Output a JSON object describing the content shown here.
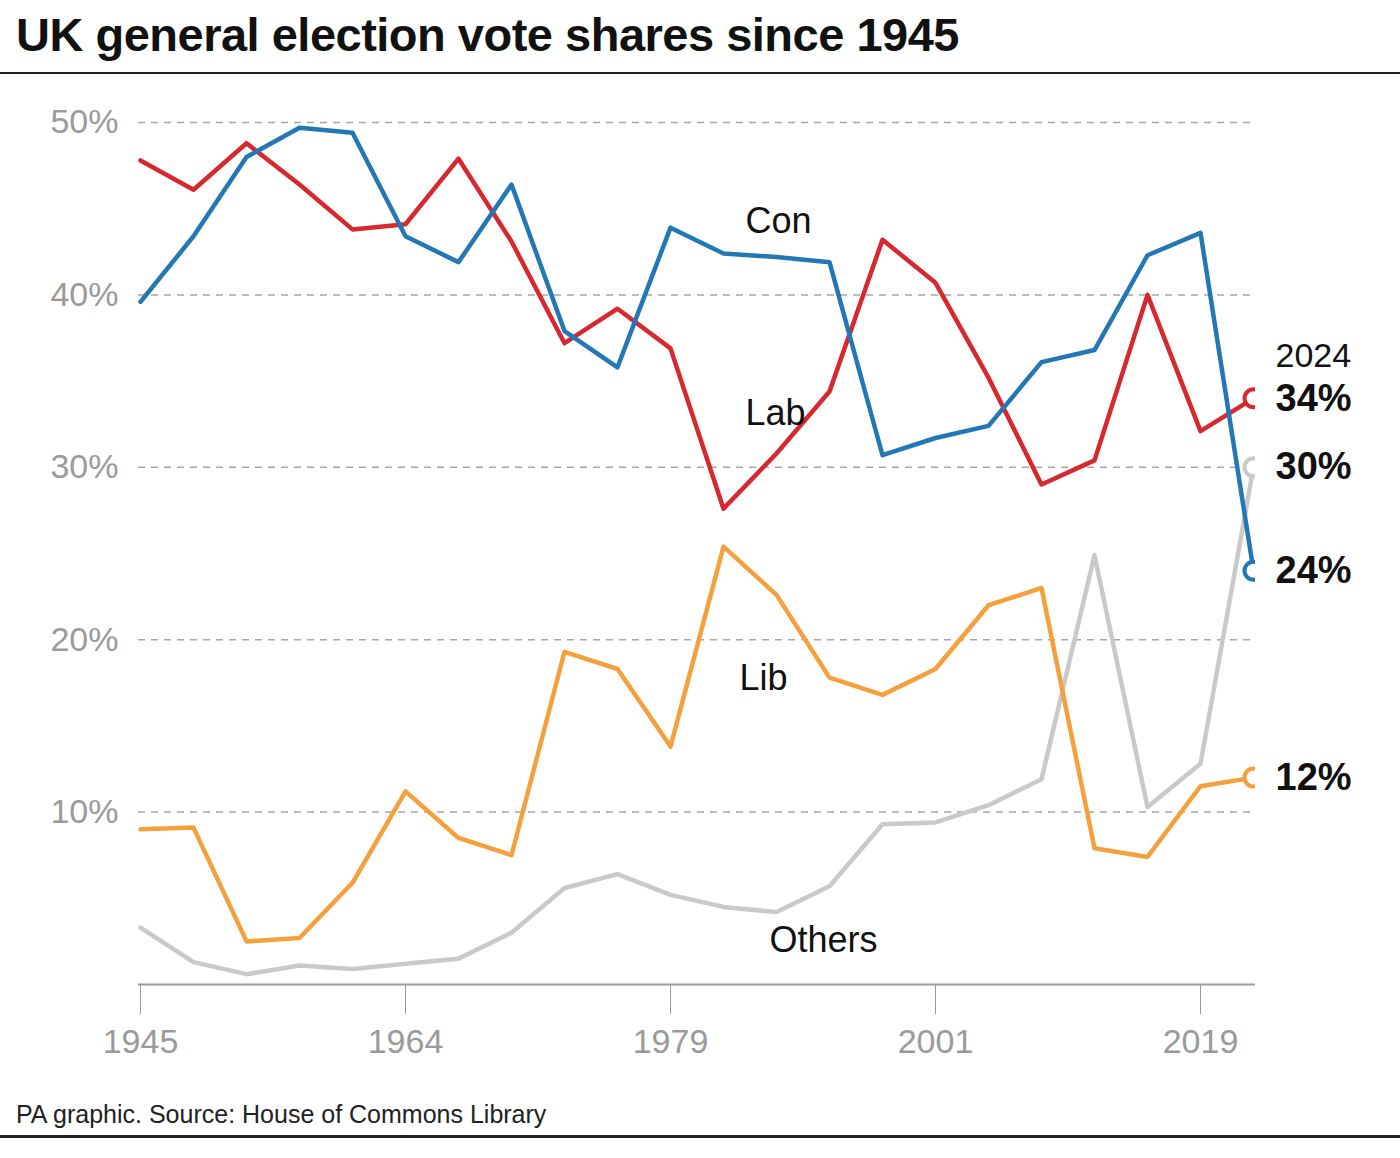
{
  "chart_data": {
    "type": "line",
    "title": "UK general election vote shares since 1945",
    "source": "PA graphic. Source: House of Commons Library",
    "annotation": "2024",
    "categories": [
      "1945",
      null,
      null,
      null,
      null,
      "1964",
      null,
      null,
      null,
      null,
      "1979",
      null,
      null,
      null,
      null,
      "2001",
      null,
      null,
      null,
      null,
      "2019",
      null
    ],
    "ylim": [
      0,
      50
    ],
    "yticks": [
      {
        "value": 10,
        "label": "10%"
      },
      {
        "value": 20,
        "label": "20%"
      },
      {
        "value": 30,
        "label": "30%"
      },
      {
        "value": 40,
        "label": "40%"
      },
      {
        "value": 50,
        "label": "50%"
      }
    ],
    "grid": true,
    "series": [
      {
        "name": "Con",
        "color": "#2178b5",
        "values": [
          39.6,
          43.4,
          48.0,
          49.7,
          49.4,
          43.4,
          41.9,
          46.4,
          37.9,
          35.8,
          43.9,
          42.4,
          42.2,
          41.9,
          30.7,
          31.7,
          32.4,
          36.1,
          36.8,
          42.3,
          43.6,
          24
        ],
        "value_labels": [
          null,
          null,
          null,
          null,
          null,
          null,
          null,
          null,
          null,
          null,
          null,
          null,
          null,
          null,
          null,
          null,
          null,
          null,
          null,
          null,
          null,
          "24%"
        ]
      },
      {
        "name": "Lab",
        "color": "#d7272f",
        "values": [
          47.8,
          46.1,
          48.8,
          46.4,
          43.8,
          44.1,
          47.9,
          43.1,
          37.2,
          39.2,
          36.9,
          27.6,
          30.8,
          34.4,
          43.2,
          40.7,
          35.2,
          29.0,
          30.4,
          40.0,
          32.1,
          34
        ],
        "value_labels": [
          null,
          null,
          null,
          null,
          null,
          null,
          null,
          null,
          null,
          null,
          null,
          null,
          null,
          null,
          null,
          null,
          null,
          null,
          null,
          null,
          null,
          "34%"
        ]
      },
      {
        "name": "Lib",
        "color": "#f4a03c",
        "values": [
          9.0,
          9.1,
          2.5,
          2.7,
          5.9,
          11.2,
          8.5,
          7.5,
          19.3,
          18.3,
          13.8,
          25.4,
          22.6,
          17.8,
          16.8,
          18.3,
          22.0,
          23.0,
          7.9,
          7.4,
          11.5,
          12
        ],
        "value_labels": [
          null,
          null,
          null,
          null,
          null,
          null,
          null,
          null,
          null,
          null,
          null,
          null,
          null,
          null,
          null,
          null,
          null,
          null,
          null,
          null,
          null,
          "12%"
        ]
      },
      {
        "name": "Others",
        "color": "#c9c9c9",
        "values": [
          3.3,
          1.3,
          0.6,
          1.1,
          0.9,
          1.2,
          1.5,
          3.0,
          5.6,
          6.4,
          5.2,
          4.5,
          4.2,
          5.7,
          9.3,
          9.4,
          10.4,
          11.9,
          24.9,
          10.3,
          12.8,
          30
        ],
        "value_labels": [
          null,
          null,
          null,
          null,
          null,
          null,
          null,
          null,
          null,
          null,
          null,
          null,
          null,
          null,
          null,
          null,
          null,
          null,
          null,
          null,
          null,
          "30%"
        ]
      }
    ]
  }
}
